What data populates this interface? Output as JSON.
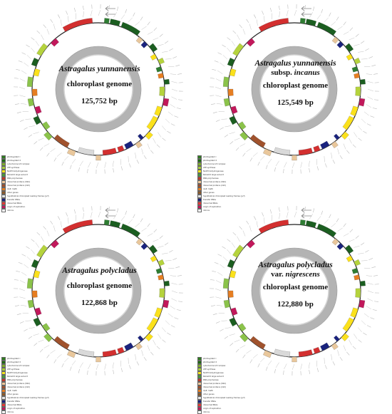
{
  "panels": [
    {
      "species": "Astragalus yunnanensis",
      "subtitle_rank": "",
      "subtitle_name": "",
      "caption": "chloroplast genome",
      "length": "125,752 bp"
    },
    {
      "species": "Astragalus yunnanensis",
      "subtitle_rank": "subsp.",
      "subtitle_name": "incanus",
      "caption": "chloroplast genome",
      "length": "125,549 bp"
    },
    {
      "species": "Astragalus polycladus",
      "subtitle_rank": "",
      "subtitle_name": "",
      "caption": "chloroplast genome",
      "length": "122,868 bp"
    },
    {
      "species": "Astragalus polycladus",
      "subtitle_rank": "var.",
      "subtitle_name": "nigrescens",
      "caption": "chloroplast genome",
      "length": "122,880 bp"
    }
  ],
  "legend": [
    {
      "label": "photosystem I",
      "color": "#2e7d1f"
    },
    {
      "label": "photosystem II",
      "color": "#1e6b12"
    },
    {
      "label": "cytochrome b/f complex",
      "color": "#7fb02a"
    },
    {
      "label": "ATP synthase",
      "color": "#a8cf3c"
    },
    {
      "label": "NADH dehydrogenase",
      "color": "#f5e51b"
    },
    {
      "label": "RubisCO large subunit",
      "color": "#4a9a3a"
    },
    {
      "label": "RNA polymerase",
      "color": "#c0392b"
    },
    {
      "label": "ribosomal proteins (SSU)",
      "color": "#f0c79a"
    },
    {
      "label": "ribosomal proteins (LSU)",
      "color": "#a0522d"
    },
    {
      "label": "clpP, matK",
      "color": "#e67e22"
    },
    {
      "label": "other genes",
      "color": "#8b5a2b"
    },
    {
      "label": "hypothetical chloroplast reading frames (ycf)",
      "color": "#e5e5e5"
    },
    {
      "label": "transfer RNAs",
      "color": "#1a237e"
    },
    {
      "label": "ribosomal RNAs",
      "color": "#e53935"
    },
    {
      "label": "origin of replication",
      "color": "#c2185b"
    },
    {
      "label": "introns",
      "color": "#ffffff"
    }
  ]
}
